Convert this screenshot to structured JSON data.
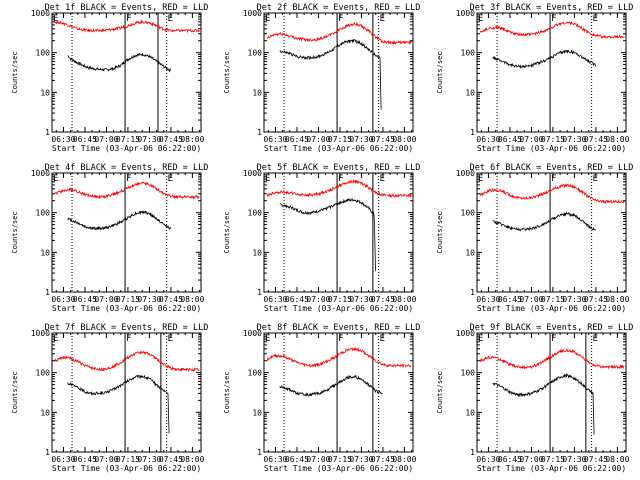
{
  "ytitle": "Counts/sec",
  "xtitle": "Start Time (03-Apr-06 06:22:00)",
  "title_suffix": "BLACK = Events, RED = LLD",
  "xticks": [
    "06:30",
    "06:45",
    "07:00",
    "07:15",
    "07:30",
    "07:45",
    "08:00"
  ],
  "yticks": [
    "1",
    "10",
    "100",
    "1000"
  ],
  "colors": {
    "events": "#000000",
    "lld": "#ff0000"
  },
  "chart_data": [
    {
      "type": "line",
      "title": "Det 1f BLACK = Events, RED = LLD",
      "region_labels": [
        "E",
        "F",
        "E"
      ],
      "xlim": [
        "06:22",
        "08:06"
      ],
      "ylim": [
        1,
        1000
      ],
      "yscale": "log",
      "solid_lines": [
        "07:13",
        "07:36"
      ],
      "dotted_lines": [
        "06:36",
        "07:42"
      ],
      "series": [
        {
          "name": "Events",
          "color": "#000000",
          "x": [
            "06:33",
            "06:35",
            "06:40",
            "06:45",
            "06:50",
            "06:55",
            "07:00",
            "07:05",
            "07:10",
            "07:15",
            "07:20",
            "07:25",
            "07:30",
            "07:35",
            "07:40",
            "07:45"
          ],
          "y": [
            85,
            70,
            55,
            45,
            40,
            38,
            37,
            40,
            48,
            68,
            85,
            92,
            80,
            60,
            45,
            35
          ]
        },
        {
          "name": "LLD",
          "color": "#ff0000",
          "x": [
            "06:24",
            "06:30",
            "06:35",
            "06:40",
            "06:45",
            "06:50",
            "06:55",
            "07:00",
            "07:05",
            "07:10",
            "07:15",
            "07:20",
            "07:25",
            "07:30",
            "07:35",
            "07:40",
            "07:45",
            "07:50",
            "08:00",
            "08:05"
          ],
          "y": [
            600,
            550,
            470,
            400,
            370,
            360,
            360,
            370,
            390,
            420,
            480,
            560,
            600,
            570,
            480,
            390,
            360,
            360,
            360,
            360
          ]
        }
      ]
    },
    {
      "type": "line",
      "title": "Det 2f BLACK = Events, RED = LLD",
      "region_labels": [
        "E",
        "F",
        "E"
      ],
      "xlim": [
        "06:22",
        "08:06"
      ],
      "ylim": [
        1,
        1000
      ],
      "yscale": "log",
      "solid_lines": [
        "07:13",
        "07:38"
      ],
      "dotted_lines": [
        "06:36",
        "07:42"
      ],
      "series": [
        {
          "name": "Events",
          "color": "#000000",
          "x": [
            "06:33",
            "06:40",
            "06:45",
            "06:50",
            "06:55",
            "07:00",
            "07:05",
            "07:10",
            "07:15",
            "07:20",
            "07:25",
            "07:30",
            "07:35",
            "07:40",
            "07:43",
            "07:44"
          ],
          "y": [
            110,
            95,
            80,
            75,
            75,
            80,
            95,
            120,
            160,
            195,
            200,
            170,
            120,
            85,
            75,
            1
          ]
        },
        {
          "name": "LLD",
          "color": "#ff0000",
          "x": [
            "06:24",
            "06:30",
            "06:35",
            "06:40",
            "06:45",
            "06:50",
            "06:55",
            "07:00",
            "07:05",
            "07:10",
            "07:15",
            "07:20",
            "07:25",
            "07:30",
            "07:35",
            "07:40",
            "07:45",
            "07:50",
            "08:00",
            "08:05"
          ],
          "y": [
            230,
            290,
            300,
            260,
            230,
            215,
            210,
            220,
            250,
            300,
            390,
            480,
            520,
            470,
            350,
            250,
            190,
            180,
            180,
            185
          ]
        }
      ]
    },
    {
      "type": "line",
      "title": "Det 3f BLACK = Events, RED = LLD",
      "region_labels": [
        "E",
        "F",
        "E"
      ],
      "xlim": [
        "06:22",
        "08:06"
      ],
      "ylim": [
        1,
        1000
      ],
      "yscale": "log",
      "solid_lines": [
        "07:13"
      ],
      "dotted_lines": [
        "06:36",
        "07:42"
      ],
      "series": [
        {
          "name": "Events",
          "color": "#000000",
          "x": [
            "06:33",
            "06:40",
            "06:45",
            "06:50",
            "06:55",
            "07:00",
            "07:05",
            "07:10",
            "07:15",
            "07:20",
            "07:25",
            "07:30",
            "07:35",
            "07:40",
            "07:45"
          ],
          "y": [
            75,
            60,
            50,
            45,
            45,
            48,
            55,
            65,
            80,
            100,
            110,
            100,
            80,
            60,
            48
          ]
        },
        {
          "name": "LLD",
          "color": "#ff0000",
          "x": [
            "06:24",
            "06:30",
            "06:35",
            "06:40",
            "06:45",
            "06:50",
            "06:55",
            "07:00",
            "07:05",
            "07:10",
            "07:15",
            "07:20",
            "07:25",
            "07:30",
            "07:35",
            "07:40",
            "07:45",
            "07:50",
            "08:00",
            "08:05"
          ],
          "y": [
            320,
            400,
            440,
            400,
            330,
            290,
            280,
            290,
            320,
            370,
            450,
            540,
            580,
            530,
            420,
            320,
            270,
            250,
            250,
            250
          ]
        }
      ]
    },
    {
      "type": "line",
      "title": "Det 4f BLACK = Events, RED = LLD",
      "region_labels": [
        "E",
        "F",
        "E"
      ],
      "xlim": [
        "06:22",
        "08:06"
      ],
      "ylim": [
        1,
        1000
      ],
      "yscale": "log",
      "solid_lines": [
        "07:13"
      ],
      "dotted_lines": [
        "06:36",
        "07:42"
      ],
      "series": [
        {
          "name": "Events",
          "color": "#000000",
          "x": [
            "06:33",
            "06:40",
            "06:45",
            "06:50",
            "06:55",
            "07:00",
            "07:05",
            "07:10",
            "07:15",
            "07:20",
            "07:25",
            "07:30",
            "07:35",
            "07:40",
            "07:45"
          ],
          "y": [
            70,
            55,
            45,
            40,
            40,
            42,
            48,
            58,
            75,
            95,
            105,
            95,
            70,
            50,
            40
          ]
        },
        {
          "name": "LLD",
          "color": "#ff0000",
          "x": [
            "06:24",
            "06:30",
            "06:35",
            "06:40",
            "06:45",
            "06:50",
            "06:55",
            "07:00",
            "07:05",
            "07:10",
            "07:15",
            "07:20",
            "07:25",
            "07:30",
            "07:35",
            "07:40",
            "07:45",
            "07:50",
            "08:00",
            "08:05"
          ],
          "y": [
            300,
            360,
            380,
            340,
            290,
            260,
            250,
            260,
            290,
            340,
            420,
            510,
            560,
            510,
            400,
            300,
            260,
            250,
            250,
            250
          ]
        }
      ]
    },
    {
      "type": "line",
      "title": "Det 5f BLACK = Events, RED = LLD",
      "region_labels": [
        "E",
        "F",
        "E"
      ],
      "xlim": [
        "06:22",
        "08:06"
      ],
      "ylim": [
        1,
        1000
      ],
      "yscale": "log",
      "solid_lines": [
        "07:13",
        "07:38"
      ],
      "dotted_lines": [
        "06:36",
        "07:42"
      ],
      "series": [
        {
          "name": "Events",
          "color": "#000000",
          "x": [
            "06:33",
            "06:40",
            "06:45",
            "06:50",
            "06:55",
            "07:00",
            "07:05",
            "07:10",
            "07:15",
            "07:20",
            "07:25",
            "07:30",
            "07:35",
            "07:39",
            "07:40"
          ],
          "y": [
            160,
            140,
            115,
            100,
            100,
            110,
            125,
            150,
            180,
            205,
            210,
            180,
            130,
            90,
            2
          ]
        },
        {
          "name": "LLD",
          "color": "#ff0000",
          "x": [
            "06:24",
            "06:30",
            "06:35",
            "06:40",
            "06:45",
            "06:50",
            "06:55",
            "07:00",
            "07:05",
            "07:10",
            "07:15",
            "07:20",
            "07:25",
            "07:30",
            "07:35",
            "07:40",
            "07:45",
            "07:50",
            "08:00",
            "08:05"
          ],
          "y": [
            270,
            320,
            340,
            320,
            290,
            280,
            280,
            300,
            340,
            400,
            490,
            580,
            620,
            560,
            430,
            320,
            280,
            270,
            270,
            270
          ]
        }
      ]
    },
    {
      "type": "line",
      "title": "Det 6f BLACK = Events, RED = LLD",
      "region_labels": [
        "E",
        "F",
        "E"
      ],
      "xlim": [
        "06:22",
        "08:06"
      ],
      "ylim": [
        1,
        1000
      ],
      "yscale": "log",
      "solid_lines": [
        "07:13"
      ],
      "dotted_lines": [
        "06:36",
        "07:42"
      ],
      "series": [
        {
          "name": "Events",
          "color": "#000000",
          "x": [
            "06:33",
            "06:40",
            "06:45",
            "06:50",
            "06:55",
            "07:00",
            "07:05",
            "07:10",
            "07:15",
            "07:20",
            "07:25",
            "07:30",
            "07:35",
            "07:40",
            "07:45"
          ],
          "y": [
            60,
            50,
            42,
            38,
            38,
            40,
            45,
            55,
            70,
            88,
            95,
            85,
            65,
            45,
            35
          ]
        },
        {
          "name": "LLD",
          "color": "#ff0000",
          "x": [
            "06:24",
            "06:30",
            "06:35",
            "06:40",
            "06:45",
            "06:50",
            "06:55",
            "07:00",
            "07:05",
            "07:10",
            "07:15",
            "07:20",
            "07:25",
            "07:30",
            "07:35",
            "07:40",
            "07:45",
            "07:50",
            "08:00",
            "08:05"
          ],
          "y": [
            280,
            350,
            380,
            340,
            280,
            240,
            230,
            240,
            270,
            320,
            390,
            460,
            500,
            450,
            340,
            250,
            200,
            190,
            190,
            190
          ]
        }
      ]
    },
    {
      "type": "line",
      "title": "Det 7f BLACK = Events, RED = LLD",
      "region_labels": [
        "E",
        "F",
        "E"
      ],
      "xlim": [
        "06:22",
        "08:06"
      ],
      "ylim": [
        1,
        1000
      ],
      "yscale": "log",
      "solid_lines": [
        "07:13",
        "07:38"
      ],
      "dotted_lines": [
        "06:36",
        "07:42"
      ],
      "series": [
        {
          "name": "Events",
          "color": "#000000",
          "x": [
            "06:33",
            "06:40",
            "06:45",
            "06:50",
            "06:55",
            "07:00",
            "07:05",
            "07:10",
            "07:15",
            "07:20",
            "07:25",
            "07:30",
            "07:35",
            "07:40",
            "07:43",
            "07:44"
          ],
          "y": [
            55,
            42,
            33,
            30,
            30,
            32,
            38,
            48,
            62,
            78,
            82,
            70,
            50,
            35,
            30,
            1
          ]
        },
        {
          "name": "LLD",
          "color": "#ff0000",
          "x": [
            "06:24",
            "06:30",
            "06:35",
            "06:40",
            "06:45",
            "06:50",
            "06:55",
            "07:00",
            "07:05",
            "07:10",
            "07:15",
            "07:20",
            "07:25",
            "07:30",
            "07:35",
            "07:40",
            "07:45",
            "07:50",
            "08:00",
            "08:05"
          ],
          "y": [
            200,
            240,
            230,
            190,
            150,
            130,
            120,
            125,
            145,
            180,
            240,
            300,
            330,
            300,
            220,
            160,
            130,
            120,
            120,
            120
          ]
        }
      ]
    },
    {
      "type": "line",
      "title": "Det 8f BLACK = Events, RED = LLD",
      "region_labels": [
        "E",
        "F",
        "E"
      ],
      "xlim": [
        "06:22",
        "08:06"
      ],
      "ylim": [
        1,
        1000
      ],
      "yscale": "log",
      "solid_lines": [
        "07:13",
        "07:38"
      ],
      "dotted_lines": [
        "06:36",
        "07:42"
      ],
      "series": [
        {
          "name": "Events",
          "color": "#000000",
          "x": [
            "06:33",
            "06:40",
            "06:45",
            "06:50",
            "06:55",
            "07:00",
            "07:05",
            "07:10",
            "07:15",
            "07:20",
            "07:25",
            "07:30",
            "07:35",
            "07:40",
            "07:45"
          ],
          "y": [
            45,
            38,
            30,
            28,
            28,
            30,
            35,
            45,
            58,
            75,
            80,
            68,
            50,
            35,
            30
          ]
        },
        {
          "name": "LLD",
          "color": "#ff0000",
          "x": [
            "06:24",
            "06:30",
            "06:35",
            "06:40",
            "06:45",
            "06:50",
            "06:55",
            "07:00",
            "07:05",
            "07:10",
            "07:15",
            "07:20",
            "07:25",
            "07:30",
            "07:35",
            "07:40",
            "07:45",
            "07:50",
            "08:00",
            "08:05"
          ],
          "y": [
            220,
            270,
            260,
            220,
            180,
            160,
            150,
            160,
            185,
            230,
            300,
            370,
            400,
            360,
            270,
            200,
            160,
            150,
            150,
            150
          ]
        }
      ]
    },
    {
      "type": "line",
      "title": "Det 9f BLACK = Events, RED = LLD",
      "region_labels": [
        "E",
        "F",
        "E"
      ],
      "xlim": [
        "06:22",
        "08:06"
      ],
      "ylim": [
        1,
        1000
      ],
      "yscale": "log",
      "solid_lines": [
        "07:13",
        "07:38"
      ],
      "dotted_lines": [
        "06:36",
        "07:42"
      ],
      "series": [
        {
          "name": "Events",
          "color": "#000000",
          "x": [
            "06:33",
            "06:40",
            "06:45",
            "06:50",
            "06:55",
            "07:00",
            "07:05",
            "07:10",
            "07:15",
            "07:20",
            "07:25",
            "07:30",
            "07:35",
            "07:40",
            "07:43",
            "07:44"
          ],
          "y": [
            55,
            42,
            32,
            28,
            28,
            30,
            36,
            46,
            60,
            78,
            85,
            72,
            52,
            36,
            30,
            1
          ]
        },
        {
          "name": "LLD",
          "color": "#ff0000",
          "x": [
            "06:24",
            "06:30",
            "06:35",
            "06:40",
            "06:45",
            "06:50",
            "06:55",
            "07:00",
            "07:05",
            "07:10",
            "07:15",
            "07:20",
            "07:25",
            "07:30",
            "07:35",
            "07:40",
            "07:45",
            "07:50",
            "08:00",
            "08:05"
          ],
          "y": [
            200,
            240,
            240,
            200,
            160,
            140,
            135,
            140,
            165,
            210,
            270,
            340,
            370,
            330,
            250,
            180,
            150,
            140,
            140,
            140
          ]
        }
      ]
    }
  ]
}
